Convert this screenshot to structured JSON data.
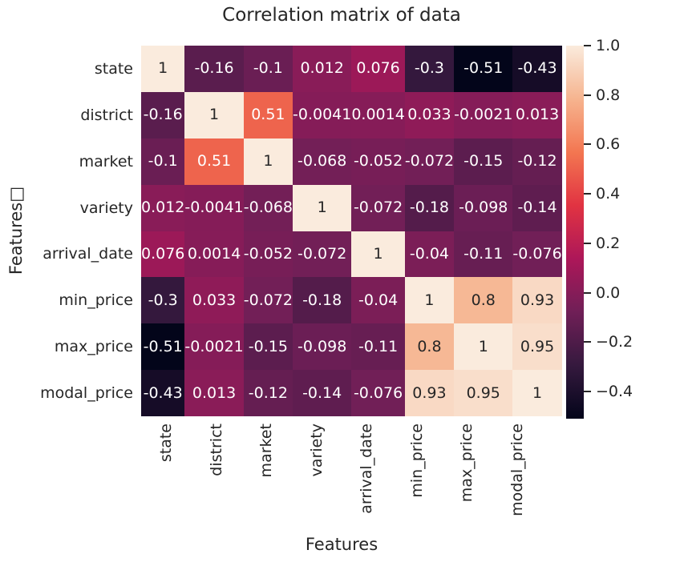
{
  "figure": {
    "background": "#ffffff",
    "text_color": "#262626"
  },
  "chart_data": {
    "type": "heatmap",
    "title": "Correlation matrix of data",
    "xlabel": "Features",
    "ylabel": "Features□",
    "legend_position": "colorbar-right",
    "grid": false,
    "labels": [
      "state",
      "district",
      "market",
      "variety",
      "arrival_date",
      "min_price",
      "max_price",
      "modal_price"
    ],
    "matrix": [
      [
        "1",
        "-0.16",
        "-0.1",
        "0.012",
        "0.076",
        "-0.3",
        "-0.51",
        "-0.43"
      ],
      [
        "-0.16",
        "1",
        "0.51",
        "-0.0041",
        "0.0014",
        "0.033",
        "-0.0021",
        "0.013"
      ],
      [
        "-0.1",
        "0.51",
        "1",
        "-0.068",
        "-0.052",
        "-0.072",
        "-0.15",
        "-0.12"
      ],
      [
        "0.012",
        "-0.0041",
        "-0.068",
        "1",
        "-0.072",
        "-0.18",
        "-0.098",
        "-0.14"
      ],
      [
        "0.076",
        "0.0014",
        "-0.052",
        "-0.072",
        "1",
        "-0.04",
        "-0.11",
        "-0.076"
      ],
      [
        "-0.3",
        "0.033",
        "-0.072",
        "-0.18",
        "-0.04",
        "1",
        "0.8",
        "0.93"
      ],
      [
        "-0.51",
        "-0.0021",
        "-0.15",
        "-0.098",
        "-0.11",
        "0.8",
        "1",
        "0.95"
      ],
      [
        "-0.43",
        "0.013",
        "-0.12",
        "-0.14",
        "-0.076",
        "0.93",
        "0.95",
        "1"
      ]
    ],
    "vmin": -0.51,
    "vmax": 1.0,
    "colormap": {
      "name": "rocket",
      "anchors": [
        [
          0.0,
          "#03051a"
        ],
        [
          0.143,
          "#35193e"
        ],
        [
          0.286,
          "#701f57"
        ],
        [
          0.429,
          "#ad1759"
        ],
        [
          0.571,
          "#e13342"
        ],
        [
          0.714,
          "#f37651"
        ],
        [
          0.857,
          "#f6b48f"
        ],
        [
          1.0,
          "#faebdd"
        ]
      ]
    },
    "annotation_color_dark": "#262626",
    "annotation_color_light": "#ffffff",
    "colorbar": {
      "tick_labels": [
        "1.0",
        "0.8",
        "0.6",
        "0.4",
        "0.2",
        "0.0",
        "−0.2",
        "−0.4"
      ],
      "tick_values": [
        1.0,
        0.8,
        0.6,
        0.4,
        0.2,
        0.0,
        -0.2,
        -0.4
      ]
    }
  }
}
